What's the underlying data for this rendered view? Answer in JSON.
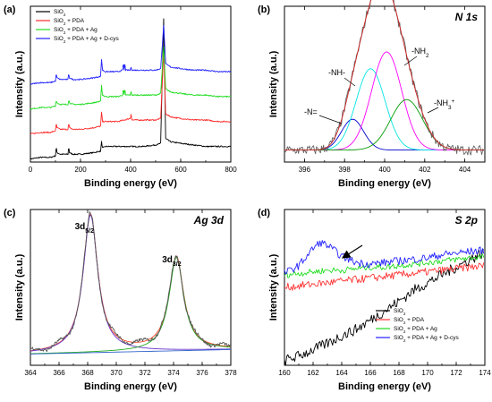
{
  "chart_data": [
    {
      "panel": "(a)",
      "type": "line",
      "xlabel": "Binding energy (eV)",
      "ylabel": "Intensity (a.u.)",
      "xlim": [
        0,
        800
      ],
      "xticks": [
        0,
        200,
        400,
        600,
        800
      ],
      "legend": {
        "placement": "top-left"
      },
      "series": [
        {
          "name": "SiO",
          "sub": "2",
          "suffix": "",
          "color": "#000000",
          "offset": 0.0,
          "x": [
            0,
            40,
            80,
            100,
            103,
            106,
            120,
            150,
            153,
            156,
            170,
            200,
            250,
            280,
            284,
            288,
            300,
            350,
            400,
            450,
            500,
            520,
            532,
            540,
            560,
            600,
            650,
            700,
            750,
            800
          ],
          "y": [
            0.02,
            0.03,
            0.03,
            0.04,
            0.1,
            0.06,
            0.05,
            0.05,
            0.1,
            0.06,
            0.05,
            0.05,
            0.06,
            0.07,
            0.13,
            0.09,
            0.1,
            0.1,
            0.1,
            0.1,
            0.11,
            0.12,
            0.92,
            0.15,
            0.13,
            0.12,
            0.11,
            0.1,
            0.1,
            0.1
          ]
        },
        {
          "name": "SiO",
          "sub": "2",
          "suffix": " + PDA",
          "color": "#ff2a2a",
          "offset": 0.16,
          "x": [
            0,
            40,
            80,
            100,
            103,
            106,
            120,
            150,
            153,
            156,
            170,
            200,
            250,
            280,
            284,
            288,
            300,
            350,
            399,
            402,
            405,
            450,
            500,
            520,
            532,
            540,
            560,
            600,
            650,
            700,
            750,
            800
          ],
          "y": [
            0.02,
            0.03,
            0.03,
            0.04,
            0.09,
            0.06,
            0.05,
            0.05,
            0.09,
            0.06,
            0.05,
            0.05,
            0.06,
            0.07,
            0.16,
            0.1,
            0.1,
            0.1,
            0.12,
            0.15,
            0.11,
            0.11,
            0.11,
            0.12,
            0.55,
            0.15,
            0.13,
            0.12,
            0.11,
            0.11,
            0.1,
            0.1
          ]
        },
        {
          "name": "SiO",
          "sub": "2",
          "suffix": " + PDA + Ag",
          "color": "#22dd22",
          "offset": 0.32,
          "x": [
            0,
            40,
            80,
            100,
            103,
            106,
            120,
            150,
            153,
            156,
            170,
            200,
            250,
            280,
            284,
            288,
            300,
            350,
            368,
            371,
            374,
            377,
            380,
            399,
            402,
            405,
            450,
            500,
            520,
            532,
            540,
            560,
            600,
            650,
            700,
            750,
            800
          ],
          "y": [
            0.02,
            0.03,
            0.03,
            0.04,
            0.08,
            0.06,
            0.05,
            0.05,
            0.08,
            0.06,
            0.05,
            0.05,
            0.06,
            0.07,
            0.17,
            0.11,
            0.1,
            0.1,
            0.11,
            0.15,
            0.11,
            0.15,
            0.11,
            0.11,
            0.13,
            0.11,
            0.11,
            0.11,
            0.12,
            0.42,
            0.15,
            0.13,
            0.12,
            0.11,
            0.11,
            0.1,
            0.1
          ]
        },
        {
          "name": "SiO",
          "sub": "2",
          "suffix": " + PDA + Ag + D-cys",
          "color": "#2222ff",
          "offset": 0.48,
          "x": [
            0,
            40,
            80,
            100,
            103,
            106,
            120,
            150,
            153,
            156,
            170,
            200,
            250,
            280,
            284,
            288,
            300,
            350,
            368,
            371,
            374,
            377,
            380,
            399,
            402,
            405,
            450,
            500,
            520,
            532,
            540,
            560,
            600,
            650,
            700,
            750,
            800
          ],
          "y": [
            0.02,
            0.03,
            0.03,
            0.04,
            0.09,
            0.06,
            0.05,
            0.05,
            0.09,
            0.06,
            0.05,
            0.05,
            0.06,
            0.07,
            0.18,
            0.11,
            0.1,
            0.1,
            0.11,
            0.16,
            0.11,
            0.16,
            0.11,
            0.11,
            0.13,
            0.11,
            0.11,
            0.11,
            0.12,
            0.4,
            0.15,
            0.13,
            0.12,
            0.11,
            0.11,
            0.1,
            0.1
          ]
        }
      ]
    },
    {
      "panel": "(b)",
      "type": "line",
      "title": "N 1s",
      "xlabel": "Binding energy (eV)",
      "ylabel": "Intensity (a.u.)",
      "xlim": [
        395,
        405
      ],
      "xticks": [
        396,
        398,
        400,
        402,
        404
      ],
      "annotations": [
        {
          "text": "-NH",
          "sub": "2",
          "sup": ""
        },
        {
          "text": "-NH-",
          "sub": "",
          "sup": ""
        },
        {
          "text": "-NH",
          "sub": "3",
          "sup": "+"
        },
        {
          "text": "-N=",
          "sub": "",
          "sup": ""
        }
      ],
      "baseline": 0.06,
      "components": [
        {
          "center": 398.4,
          "height": 0.22,
          "width": 0.55,
          "color": "#0000cc"
        },
        {
          "center": 399.3,
          "height": 0.58,
          "width": 0.72,
          "color": "#00e5e5"
        },
        {
          "center": 400.1,
          "height": 0.7,
          "width": 0.75,
          "color": "#ff00ff"
        },
        {
          "center": 401.1,
          "height": 0.36,
          "width": 0.8,
          "color": "#009900"
        }
      ],
      "envelope_color": "#cc2222",
      "raw_color": "#666666"
    },
    {
      "panel": "(c)",
      "type": "line",
      "title": "Ag 3d",
      "xlabel": "Binding energy (eV)",
      "ylabel": "Intensity (a.u.)",
      "xlim": [
        364,
        378
      ],
      "xticks": [
        364,
        366,
        368,
        370,
        372,
        374,
        376,
        378
      ],
      "annotations": [
        {
          "text": "3d",
          "sub": "5/2"
        },
        {
          "text": "3d",
          "sub": "3/2"
        }
      ],
      "baseline_start": 0.04,
      "baseline_end": 0.07,
      "components": [
        {
          "center": 368.2,
          "height": 0.93,
          "width": 0.62,
          "color": "#6633cc"
        },
        {
          "center": 374.2,
          "height": 0.63,
          "width": 0.62,
          "color": "#22aa22"
        }
      ],
      "envelope_color": "#ff4422",
      "raw_color": "#555555"
    },
    {
      "panel": "(d)",
      "type": "line",
      "title": "S 2p",
      "xlabel": "Binding energy (eV)",
      "ylabel": "Intensity (a.u.)",
      "xlim": [
        160,
        174
      ],
      "xticks": [
        160,
        162,
        164,
        166,
        168,
        170,
        172,
        174
      ],
      "legend": {
        "placement": "bottom-right"
      },
      "series": [
        {
          "name": "SiO",
          "sub": "2",
          "suffix": "",
          "color": "#000000",
          "x": [
            160,
            161,
            162,
            163,
            164,
            165,
            166,
            167,
            168,
            169,
            170,
            171,
            172,
            173,
            174
          ],
          "y": [
            0.03,
            0.06,
            0.1,
            0.14,
            0.19,
            0.23,
            0.29,
            0.35,
            0.41,
            0.48,
            0.53,
            0.58,
            0.63,
            0.68,
            0.73
          ]
        },
        {
          "name": "SiO",
          "sub": "2",
          "suffix": " + PDA",
          "color": "#ff3333",
          "x": [
            160,
            161,
            162,
            163,
            164,
            165,
            166,
            167,
            168,
            169,
            170,
            171,
            172,
            173,
            174
          ],
          "y": [
            0.5,
            0.51,
            0.52,
            0.53,
            0.54,
            0.55,
            0.56,
            0.57,
            0.58,
            0.59,
            0.6,
            0.61,
            0.62,
            0.63,
            0.64
          ]
        },
        {
          "name": "SiO",
          "sub": "2",
          "suffix": " + PDA + Ag",
          "color": "#22dd22",
          "x": [
            160,
            161,
            162,
            163,
            164,
            165,
            166,
            167,
            168,
            169,
            170,
            171,
            172,
            173,
            174
          ],
          "y": [
            0.58,
            0.59,
            0.6,
            0.61,
            0.61,
            0.62,
            0.63,
            0.63,
            0.64,
            0.65,
            0.66,
            0.67,
            0.68,
            0.69,
            0.7
          ]
        },
        {
          "name": "SiO",
          "sub": "2",
          "suffix": " + PDA + Ag + D-cys",
          "color": "#2222ff",
          "x": [
            160,
            161,
            162,
            162.5,
            163,
            164,
            165,
            166,
            167,
            168,
            169,
            170,
            171,
            172,
            173,
            174
          ],
          "y": [
            0.59,
            0.64,
            0.75,
            0.79,
            0.77,
            0.7,
            0.66,
            0.65,
            0.66,
            0.67,
            0.68,
            0.69,
            0.71,
            0.72,
            0.73,
            0.74
          ]
        }
      ],
      "arrow_label_position": "pointing to peak near 163 eV"
    }
  ]
}
